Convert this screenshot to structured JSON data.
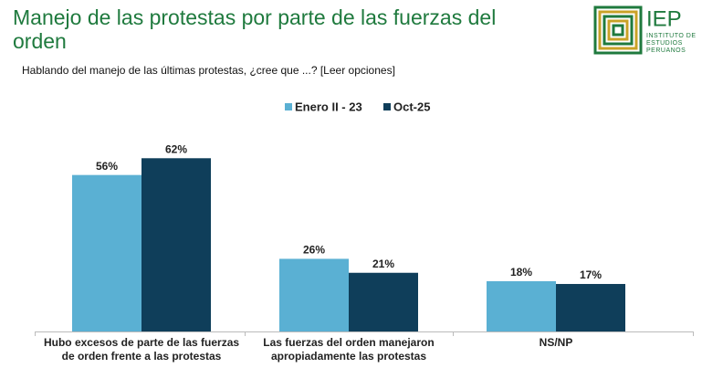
{
  "logo": {
    "name": "IEP",
    "lines": [
      "INSTITUTO DE",
      "ESTUDIOS",
      "PERUANOS"
    ]
  },
  "chart_data": {
    "type": "bar",
    "title": "Manejo de las protestas por parte de las fuerzas del orden",
    "subtitle": "Hablando del manejo de las últimas protestas, ¿cree que ...? [Leer opciones]",
    "categories": [
      "Hubo excesos de parte de las fuerzas de orden frente a las protestas",
      "Las fuerzas del orden manejaron apropiadamente las protestas",
      "NS/NP"
    ],
    "series": [
      {
        "name": "Enero II - 23",
        "color": "#5ab0d3",
        "values": [
          56,
          26,
          18
        ],
        "value_labels": [
          "56%",
          "26%",
          "18%"
        ]
      },
      {
        "name": "Oct-25",
        "color": "#0f3e5a",
        "values": [
          62,
          21,
          17
        ],
        "value_labels": [
          "62%",
          "21%",
          "17%"
        ]
      }
    ]
  }
}
